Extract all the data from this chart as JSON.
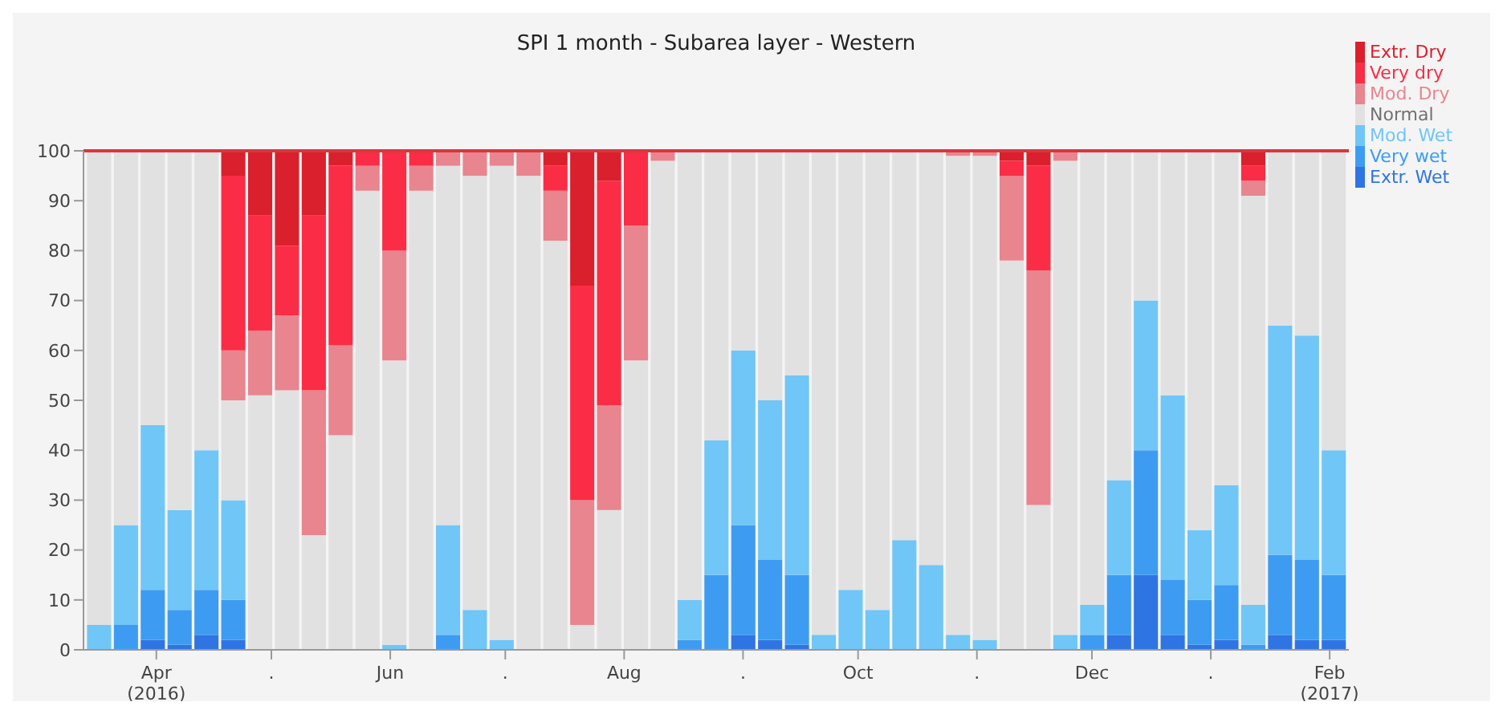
{
  "chart_data": {
    "type": "bar",
    "title": "SPI 1 month - Subarea layer - Western",
    "stacked": true,
    "legend": "top right",
    "grid": false,
    "x": [
      "2016-03-17",
      "2016-03-24",
      "2016-03-31",
      "2016-04-07",
      "2016-04-14",
      "2016-04-21",
      "2016-04-28",
      "2016-05-05",
      "2016-05-12",
      "2016-05-19",
      "2016-05-26",
      "2016-06-02",
      "2016-06-09",
      "2016-06-16",
      "2016-06-23",
      "2016-06-30",
      "2016-07-07",
      "2016-07-14",
      "2016-07-21",
      "2016-07-28",
      "2016-08-04",
      "2016-08-11",
      "2016-08-18",
      "2016-08-25",
      "2016-09-01",
      "2016-09-08",
      "2016-09-15",
      "2016-09-22",
      "2016-09-29",
      "2016-10-06",
      "2016-10-13",
      "2016-10-20",
      "2016-10-27",
      "2016-11-03",
      "2016-11-10",
      "2016-11-17",
      "2016-11-24",
      "2016-12-01",
      "2016-12-08",
      "2016-12-15",
      "2016-12-22",
      "2016-12-29",
      "2017-01-05",
      "2017-01-12",
      "2017-01-19",
      "2017-01-26",
      "2017-02-02"
    ],
    "xlim": [
      "2016-03-13",
      "2017-02-06"
    ],
    "xticks": [
      {
        "value": "2016-04-01",
        "label": "Apr\n(2016)"
      },
      {
        "value": "2016-05-01",
        "label": "."
      },
      {
        "value": "2016-06-01",
        "label": "Jun"
      },
      {
        "value": "2016-07-01",
        "label": "."
      },
      {
        "value": "2016-08-01",
        "label": "Aug"
      },
      {
        "value": "2016-09-01",
        "label": "."
      },
      {
        "value": "2016-10-01",
        "label": "Oct"
      },
      {
        "value": "2016-11-01",
        "label": "."
      },
      {
        "value": "2016-12-01",
        "label": "Dec"
      },
      {
        "value": "2017-01-01",
        "label": "."
      },
      {
        "value": "2017-02-01",
        "label": "Feb\n(2017)"
      }
    ],
    "ylim": [
      0,
      100
    ],
    "yticks": [
      0,
      10,
      20,
      30,
      40,
      50,
      60,
      70,
      80,
      90,
      100
    ],
    "ref_lines": [
      {
        "axis": "y",
        "value": 100,
        "color": "#d9363e"
      }
    ],
    "series": [
      {
        "name": "Extr. Wet",
        "color": "#2f74e3",
        "values": [
          0,
          0,
          2,
          1,
          3,
          2,
          0,
          0,
          0,
          0,
          0,
          0,
          0,
          0,
          0,
          0,
          0,
          0,
          0,
          0,
          0,
          0,
          0,
          0,
          3,
          2,
          1,
          0,
          0,
          0,
          0,
          0,
          0,
          0,
          0,
          0,
          0,
          0,
          3,
          15,
          3,
          1,
          2,
          0,
          3,
          2,
          2
        ]
      },
      {
        "name": "Very wet",
        "color": "#3d9cf2",
        "values": [
          0,
          5,
          10,
          7,
          9,
          8,
          0,
          0,
          0,
          0,
          0,
          0,
          0,
          3,
          0,
          0,
          0,
          0,
          0,
          0,
          0,
          0,
          2,
          15,
          22,
          16,
          14,
          0,
          0,
          0,
          0,
          0,
          0,
          0,
          0,
          0,
          0,
          3,
          12,
          25,
          11,
          9,
          11,
          1,
          16,
          16,
          13
        ]
      },
      {
        "name": "Mod. Wet",
        "color": "#70c6f7",
        "values": [
          5,
          20,
          33,
          20,
          28,
          20,
          0,
          0,
          0,
          0,
          0,
          1,
          0,
          22,
          8,
          2,
          0,
          0,
          0,
          0,
          0,
          0,
          8,
          27,
          35,
          32,
          40,
          3,
          12,
          8,
          22,
          17,
          3,
          2,
          0,
          0,
          3,
          6,
          19,
          30,
          37,
          14,
          20,
          8,
          46,
          45,
          25
        ]
      },
      {
        "name": "Normal",
        "color": "#e1e1e1",
        "values": [
          95,
          75,
          55,
          72,
          60,
          20,
          51,
          52,
          23,
          43,
          92,
          57,
          92,
          72,
          87,
          95,
          95,
          82,
          5,
          28,
          58,
          98,
          90,
          58,
          40,
          50,
          45,
          97,
          88,
          92,
          78,
          83,
          96,
          97,
          78,
          29,
          95,
          91,
          66,
          30,
          49,
          76,
          67,
          82,
          35,
          37,
          60
        ]
      },
      {
        "name": "Mod. Dry",
        "color": "#e8858f",
        "values": [
          0,
          0,
          0,
          0,
          0,
          10,
          13,
          15,
          29,
          18,
          5,
          22,
          5,
          3,
          5,
          3,
          5,
          10,
          25,
          21,
          27,
          2,
          0,
          0,
          0,
          0,
          0,
          0,
          0,
          0,
          0,
          0,
          1,
          1,
          17,
          47,
          2,
          0,
          0,
          0,
          0,
          0,
          0,
          3,
          0,
          0,
          0
        ]
      },
      {
        "name": "Very dry",
        "color": "#fb2c45",
        "values": [
          0,
          0,
          0,
          0,
          0,
          35,
          23,
          14,
          35,
          36,
          3,
          20,
          3,
          0,
          0,
          0,
          0,
          5,
          43,
          45,
          15,
          0,
          0,
          0,
          0,
          0,
          0,
          0,
          0,
          0,
          0,
          0,
          0,
          0,
          3,
          21,
          0,
          0,
          0,
          0,
          0,
          0,
          0,
          3,
          0,
          0,
          0
        ]
      },
      {
        "name": "Extr. Dry",
        "color": "#d9202c",
        "values": [
          0,
          0,
          0,
          0,
          0,
          5,
          13,
          19,
          13,
          3,
          0,
          0,
          0,
          0,
          0,
          0,
          0,
          3,
          27,
          6,
          0,
          0,
          0,
          0,
          0,
          0,
          0,
          0,
          0,
          0,
          0,
          0,
          0,
          0,
          2,
          3,
          0,
          0,
          0,
          0,
          0,
          0,
          0,
          3,
          0,
          0,
          0
        ]
      }
    ]
  }
}
